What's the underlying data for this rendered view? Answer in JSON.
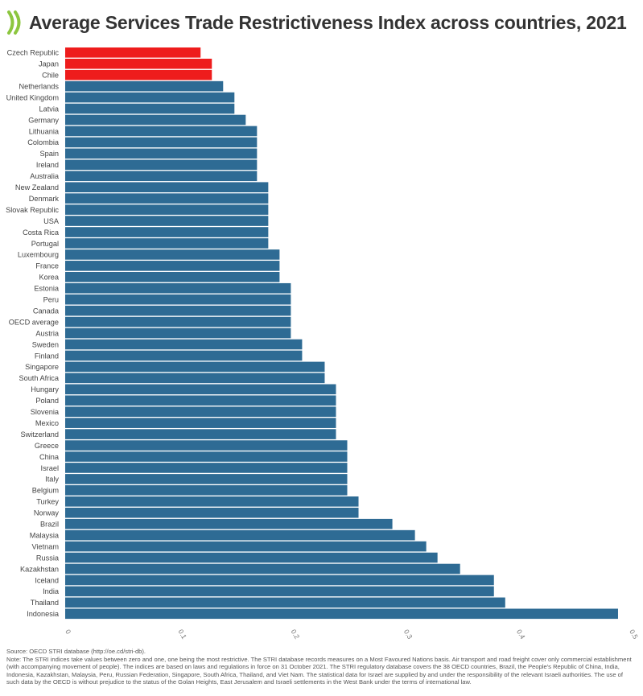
{
  "title": "Average Services Trade Restrictiveness Index across countries, 2021",
  "colors": {
    "primary": "#2e6b94",
    "highlight": "#ee1c1c",
    "logo": "#8cc63f"
  },
  "icons": {
    "logo": "oecd-logo-icon"
  },
  "chart_data": {
    "type": "bar",
    "orientation": "horizontal",
    "title": "Average Services Trade Restrictiveness Index across countries, 2021",
    "xlim": [
      0,
      0.5
    ],
    "xticks": [
      "0",
      "0.1",
      "0.2",
      "0.3",
      "0.4",
      "0.5"
    ],
    "grid": false,
    "legend": "none",
    "highlighted_categories": [
      "Czech Republic",
      "Japan",
      "Chile"
    ],
    "categories": [
      "Czech Republic",
      "Japan",
      "Chile",
      "Netherlands",
      "United Kingdom",
      "Latvia",
      "Germany",
      "Lithuania",
      "Colombia",
      "Spain",
      "Ireland",
      "Australia",
      "New Zealand",
      "Denmark",
      "Slovak Republic",
      "USA",
      "Costa Rica",
      "Portugal",
      "Luxembourg",
      "France",
      "Korea",
      "Estonia",
      "Peru",
      "Canada",
      "OECD average",
      "Austria",
      "Sweden",
      "Finland",
      "Singapore",
      "South Africa",
      "Hungary",
      "Poland",
      "Slovenia",
      "Mexico",
      "Switzerland",
      "Greece",
      "China",
      "Israel",
      "Italy",
      "Belgium",
      "Turkey",
      "Norway",
      "Brazil",
      "Malaysia",
      "Vietnam",
      "Russia",
      "Kazakhstan",
      "Iceland",
      "India",
      "Thailand",
      "Indonesia"
    ],
    "values": [
      0.12,
      0.13,
      0.13,
      0.14,
      0.15,
      0.15,
      0.16,
      0.17,
      0.17,
      0.17,
      0.17,
      0.17,
      0.18,
      0.18,
      0.18,
      0.18,
      0.18,
      0.18,
      0.19,
      0.19,
      0.19,
      0.2,
      0.2,
      0.2,
      0.2,
      0.2,
      0.21,
      0.21,
      0.23,
      0.23,
      0.24,
      0.24,
      0.24,
      0.24,
      0.24,
      0.25,
      0.25,
      0.25,
      0.25,
      0.25,
      0.26,
      0.26,
      0.29,
      0.31,
      0.32,
      0.33,
      0.35,
      0.38,
      0.38,
      0.39,
      0.49
    ]
  },
  "footer": {
    "source": "Source: OECD STRI database (http://oe.cd/stri-db).",
    "note": "Note: The STRI indices take values between zero and one, one being the most restrictive. The STRI database records measures on a Most Favoured Nations basis. Air transport and road freight cover only commercial establishment (with accompanying movement of people). The indices are based on laws and regulations in force on 31 October 2021. The STRI regulatory database covers the 38 OECD countries, Brazil, the People's Republic of China, India, Indonesia, Kazakhstan, Malaysia, Peru, Russian Federation, Singapore, South Africa, Thailand, and Viet Nam. The statistical data for Israel are supplied by and under the responsibility of the relevant Israeli authorities. The use of such data by the OECD is without prejudice to the status of the Golan Heights, East Jerusalem and Israeli settlements in the West Bank under the terms of international law."
  }
}
